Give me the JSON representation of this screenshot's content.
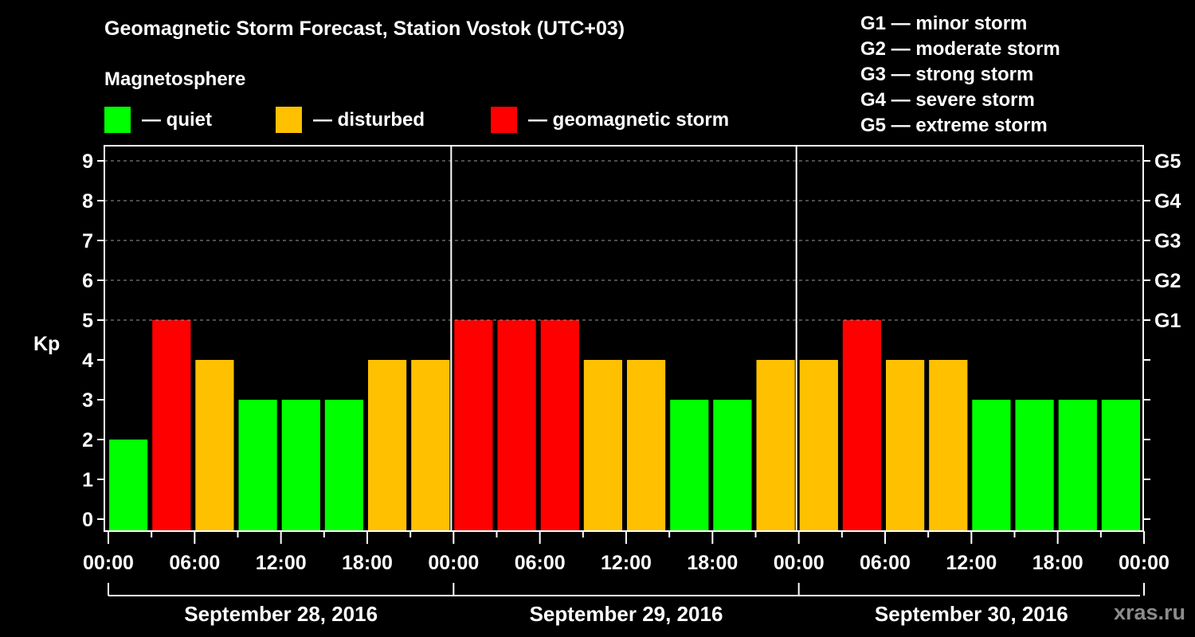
{
  "header": {
    "title": "Geomagnetic Storm Forecast, Station Vostok (UTC+03)",
    "subtitle": "Magnetosphere"
  },
  "legend": [
    {
      "label": "— quiet",
      "color": "#00ff00"
    },
    {
      "label": "— disturbed",
      "color": "#ffc000"
    },
    {
      "label": "— geomagnetic storm",
      "color": "#ff0000"
    }
  ],
  "storm_scale": [
    "G1 — minor storm",
    "G2 — moderate storm",
    "G3 — strong storm",
    "G4 — severe storm",
    "G5 — extreme storm"
  ],
  "watermark": "xras.ru",
  "chart_data": {
    "type": "bar",
    "title": "Geomagnetic Storm Forecast, Station Vostok (UTC+03)",
    "xlabel": "",
    "ylabel": "Kp",
    "ylim": [
      0,
      9
    ],
    "yticks": [
      0,
      1,
      2,
      3,
      4,
      5,
      6,
      7,
      8,
      9
    ],
    "right_axis_labels": [
      {
        "kp": 5,
        "label": "G1"
      },
      {
        "kp": 6,
        "label": "G2"
      },
      {
        "kp": 7,
        "label": "G3"
      },
      {
        "kp": 8,
        "label": "G4"
      },
      {
        "kp": 9,
        "label": "G5"
      }
    ],
    "grid": {
      "horizontal_dashed_at": [
        5,
        6,
        7,
        8,
        9
      ]
    },
    "x_tick_labels": [
      "00:00",
      "06:00",
      "12:00",
      "18:00",
      "00:00",
      "06:00",
      "12:00",
      "18:00",
      "00:00",
      "06:00",
      "12:00",
      "18:00",
      "00:00"
    ],
    "days": [
      "September 28, 2016",
      "September 29, 2016",
      "September 30, 2016"
    ],
    "interval_hours": 3,
    "categories": [
      "Sep 28 00-03",
      "Sep 28 03-06",
      "Sep 28 06-09",
      "Sep 28 09-12",
      "Sep 28 12-15",
      "Sep 28 15-18",
      "Sep 28 18-21",
      "Sep 28 21-24",
      "Sep 29 00-03",
      "Sep 29 03-06",
      "Sep 29 06-09",
      "Sep 29 09-12",
      "Sep 29 12-15",
      "Sep 29 15-18",
      "Sep 29 18-21",
      "Sep 29 21-24",
      "Sep 30 00-03",
      "Sep 30 03-06",
      "Sep 30 06-09",
      "Sep 30 09-12",
      "Sep 30 12-15",
      "Sep 30 15-18",
      "Sep 30 18-21",
      "Sep 30 21-24"
    ],
    "values": [
      2,
      5,
      4,
      3,
      3,
      3,
      4,
      4,
      5,
      5,
      5,
      4,
      4,
      3,
      3,
      4,
      4,
      5,
      4,
      4,
      3,
      3,
      3,
      3
    ],
    "color_rule": {
      "quiet": "Kp <= 3",
      "disturbed": "Kp = 4",
      "geomagnetic storm": "Kp >= 5"
    },
    "colors": {
      "quiet": "#00ff00",
      "disturbed": "#ffc000",
      "storm": "#ff0000"
    }
  }
}
